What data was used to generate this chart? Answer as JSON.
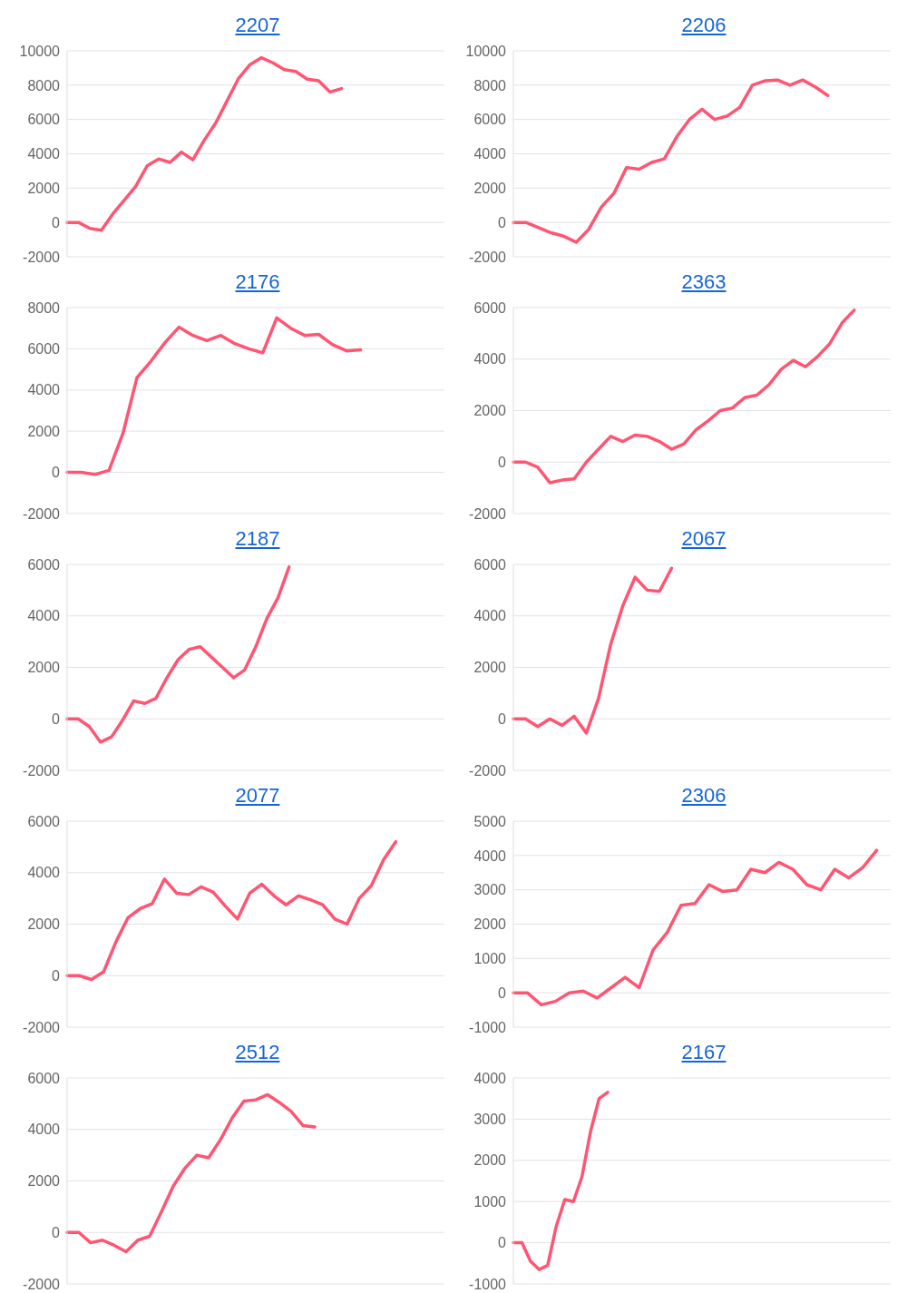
{
  "chart_data": [
    {
      "type": "line",
      "title": "2207",
      "categories": [
        null,
        null,
        null,
        null,
        null,
        null,
        null,
        null,
        null,
        null,
        null,
        null,
        null,
        null,
        null,
        null,
        null,
        null,
        null,
        null,
        null,
        null,
        null,
        null,
        null,
        null,
        null,
        null,
        null,
        null,
        null,
        null,
        null,
        null
      ],
      "series": [
        {
          "color": "#ff5573",
          "values": [
            0,
            0,
            -350,
            -450,
            500,
            1300,
            2100,
            3300,
            3700,
            3500,
            4100,
            3650,
            4800,
            5800,
            7100,
            8400,
            9200,
            9600,
            9300,
            8900,
            8800,
            8350,
            8250,
            7600,
            7800,
            null,
            null,
            null,
            null,
            null,
            null,
            null,
            null,
            null
          ]
        }
      ],
      "ylim": [
        -2000,
        10000
      ],
      "yticks": [
        -2000,
        0,
        2000,
        4000,
        6000,
        8000,
        10000
      ],
      "grid": "y",
      "tick_labels": "y"
    },
    {
      "type": "line",
      "title": "2206",
      "categories": [
        null,
        null,
        null,
        null,
        null,
        null,
        null,
        null,
        null,
        null,
        null,
        null,
        null,
        null,
        null,
        null,
        null,
        null,
        null,
        null,
        null,
        null,
        null,
        null,
        null,
        null,
        null,
        null,
        null,
        null,
        null
      ],
      "series": [
        {
          "color": "#ff5573",
          "values": [
            0,
            0,
            -300,
            -600,
            -800,
            -1150,
            -400,
            900,
            1700,
            3200,
            3100,
            3500,
            3700,
            5000,
            6000,
            6600,
            6000,
            6200,
            6700,
            8000,
            8250,
            8300,
            8000,
            8300,
            7900,
            7400,
            null,
            null,
            null,
            null,
            null
          ]
        }
      ],
      "ylim": [
        -2000,
        10000
      ],
      "yticks": [
        -2000,
        0,
        2000,
        4000,
        6000,
        8000,
        10000
      ],
      "grid": "y",
      "tick_labels": "y"
    },
    {
      "type": "line",
      "title": "2176",
      "categories": [
        null,
        null,
        null,
        null,
        null,
        null,
        null,
        null,
        null,
        null,
        null,
        null,
        null,
        null,
        null,
        null,
        null,
        null,
        null,
        null,
        null,
        null,
        null,
        null,
        null,
        null,
        null,
        null
      ],
      "series": [
        {
          "color": "#ff5573",
          "values": [
            0,
            0,
            -100,
            100,
            1900,
            4600,
            5400,
            6300,
            7050,
            6650,
            6400,
            6650,
            6250,
            6000,
            5800,
            7500,
            7000,
            6650,
            6700,
            6200,
            5900,
            5950,
            null,
            null,
            null,
            null,
            null,
            null
          ]
        }
      ],
      "ylim": [
        -2000,
        8000
      ],
      "yticks": [
        -2000,
        0,
        2000,
        4000,
        6000,
        8000
      ],
      "grid": "y",
      "tick_labels": "y"
    },
    {
      "type": "line",
      "title": "2363",
      "categories": [
        null,
        null,
        null,
        null,
        null,
        null,
        null,
        null,
        null,
        null,
        null,
        null,
        null,
        null,
        null,
        null,
        null,
        null,
        null,
        null,
        null,
        null,
        null,
        null,
        null,
        null,
        null,
        null,
        null,
        null,
        null,
        null
      ],
      "series": [
        {
          "color": "#ff5573",
          "values": [
            0,
            0,
            -200,
            -800,
            -700,
            -650,
            0,
            500,
            1000,
            800,
            1050,
            1000,
            800,
            500,
            700,
            1250,
            1600,
            2000,
            2100,
            2500,
            2600,
            3000,
            3600,
            3950,
            3700,
            4100,
            4600,
            5400,
            5900,
            null,
            null,
            null
          ]
        }
      ],
      "ylim": [
        -2000,
        6000
      ],
      "yticks": [
        -2000,
        0,
        2000,
        4000,
        6000
      ],
      "grid": "y",
      "tick_labels": "y"
    },
    {
      "type": "line",
      "title": "2187",
      "categories": [
        null,
        null,
        null,
        null,
        null,
        null,
        null,
        null,
        null,
        null,
        null,
        null,
        null,
        null,
        null,
        null,
        null,
        null,
        null,
        null,
        null,
        null,
        null,
        null,
        null,
        null,
        null,
        null,
        null,
        null,
        null,
        null,
        null,
        null,
        null
      ],
      "series": [
        {
          "color": "#ff5573",
          "values": [
            0,
            0,
            -300,
            -900,
            -700,
            -50,
            700,
            600,
            800,
            1600,
            2300,
            2700,
            2800,
            2400,
            2000,
            1600,
            1900,
            2800,
            3900,
            4700,
            5900,
            null,
            null,
            null,
            null,
            null,
            null,
            null,
            null,
            null,
            null,
            null,
            null,
            null,
            null
          ]
        }
      ],
      "ylim": [
        -2000,
        6000
      ],
      "yticks": [
        -2000,
        0,
        2000,
        4000,
        6000
      ],
      "grid": "y",
      "tick_labels": "y"
    },
    {
      "type": "line",
      "title": "2067",
      "categories": [
        null,
        null,
        null,
        null,
        null,
        null,
        null,
        null,
        null,
        null,
        null,
        null,
        null,
        null,
        null,
        null,
        null,
        null,
        null,
        null,
        null,
        null,
        null,
        null,
        null,
        null,
        null,
        null,
        null,
        null,
        null,
        null
      ],
      "series": [
        {
          "color": "#ff5573",
          "values": [
            0,
            0,
            -300,
            0,
            -250,
            100,
            -550,
            800,
            2900,
            4400,
            5500,
            5000,
            4950,
            5850,
            null,
            null,
            null,
            null,
            null,
            null,
            null,
            null,
            null,
            null,
            null,
            null,
            null,
            null,
            null,
            null,
            null,
            null
          ]
        }
      ],
      "ylim": [
        -2000,
        6000
      ],
      "yticks": [
        -2000,
        0,
        2000,
        4000,
        6000
      ],
      "grid": "y",
      "tick_labels": "y"
    },
    {
      "type": "line",
      "title": "2077",
      "categories": [
        null,
        null,
        null,
        null,
        null,
        null,
        null,
        null,
        null,
        null,
        null,
        null,
        null,
        null,
        null,
        null,
        null,
        null,
        null,
        null,
        null,
        null,
        null,
        null,
        null,
        null,
        null,
        null,
        null,
        null,
        null,
        null
      ],
      "series": [
        {
          "color": "#ff5573",
          "values": [
            0,
            0,
            -150,
            150,
            1300,
            2250,
            2600,
            2800,
            3750,
            3200,
            3150,
            3450,
            3250,
            2700,
            2200,
            3200,
            3550,
            3100,
            2750,
            3100,
            2950,
            2750,
            2200,
            2000,
            3000,
            3500,
            4500,
            5200,
            null,
            null,
            null,
            null
          ]
        }
      ],
      "ylim": [
        -2000,
        6000
      ],
      "yticks": [
        -2000,
        0,
        2000,
        4000,
        6000
      ],
      "grid": "y",
      "tick_labels": "y"
    },
    {
      "type": "line",
      "title": "2306",
      "categories": [
        null,
        null,
        null,
        null,
        null,
        null,
        null,
        null,
        null,
        null,
        null,
        null,
        null,
        null,
        null,
        null,
        null,
        null,
        null,
        null,
        null,
        null,
        null,
        null,
        null,
        null,
        null,
        null
      ],
      "series": [
        {
          "color": "#ff5573",
          "values": [
            0,
            0,
            -350,
            -250,
            0,
            50,
            -150,
            150,
            450,
            150,
            1250,
            1750,
            2550,
            2600,
            3150,
            2950,
            3000,
            3600,
            3500,
            3800,
            3600,
            3150,
            3000,
            3600,
            3350,
            3650,
            4150,
            null
          ]
        }
      ],
      "ylim": [
        -1000,
        5000
      ],
      "yticks": [
        -1000,
        0,
        1000,
        2000,
        3000,
        4000,
        5000
      ],
      "grid": "y",
      "tick_labels": "y"
    },
    {
      "type": "line",
      "title": "2512",
      "categories": [
        null,
        null,
        null,
        null,
        null,
        null,
        null,
        null,
        null,
        null,
        null,
        null,
        null,
        null,
        null,
        null,
        null,
        null,
        null,
        null,
        null,
        null,
        null,
        null,
        null,
        null,
        null,
        null,
        null,
        null,
        null,
        null,
        null
      ],
      "series": [
        {
          "color": "#ff5573",
          "values": [
            0,
            0,
            -400,
            -300,
            -500,
            -750,
            -300,
            -150,
            800,
            1800,
            2500,
            3000,
            2900,
            3600,
            4450,
            5100,
            5150,
            5350,
            5050,
            4700,
            4150,
            4100,
            null,
            null,
            null,
            null,
            null,
            null,
            null,
            null,
            null,
            null,
            null
          ]
        }
      ],
      "ylim": [
        -2000,
        6000
      ],
      "yticks": [
        -2000,
        0,
        2000,
        4000,
        6000
      ],
      "grid": "y",
      "tick_labels": "y"
    },
    {
      "type": "line",
      "title": "2167",
      "categories": [
        null,
        null,
        null,
        null,
        null,
        null,
        null,
        null,
        null,
        null,
        null,
        null,
        null,
        null,
        null,
        null,
        null,
        null,
        null,
        null,
        null,
        null,
        null,
        null,
        null,
        null,
        null,
        null,
        null,
        null,
        null,
        null,
        null,
        null,
        null,
        null,
        null,
        null,
        null,
        null,
        null,
        null,
        null,
        null,
        null
      ],
      "series": [
        {
          "color": "#ff5573",
          "values": [
            0,
            0,
            -450,
            -650,
            -550,
            400,
            1050,
            1000,
            1600,
            2700,
            3500,
            3650,
            null,
            null,
            null,
            null,
            null,
            null,
            null,
            null,
            null,
            null,
            null,
            null,
            null,
            null,
            null,
            null,
            null,
            null,
            null,
            null,
            null,
            null,
            null,
            null,
            null,
            null,
            null,
            null,
            null,
            null,
            null,
            null,
            null
          ]
        }
      ],
      "ylim": [
        -1000,
        4000
      ],
      "yticks": [
        -1000,
        0,
        1000,
        2000,
        3000,
        4000
      ],
      "grid": "y",
      "tick_labels": "y"
    }
  ]
}
